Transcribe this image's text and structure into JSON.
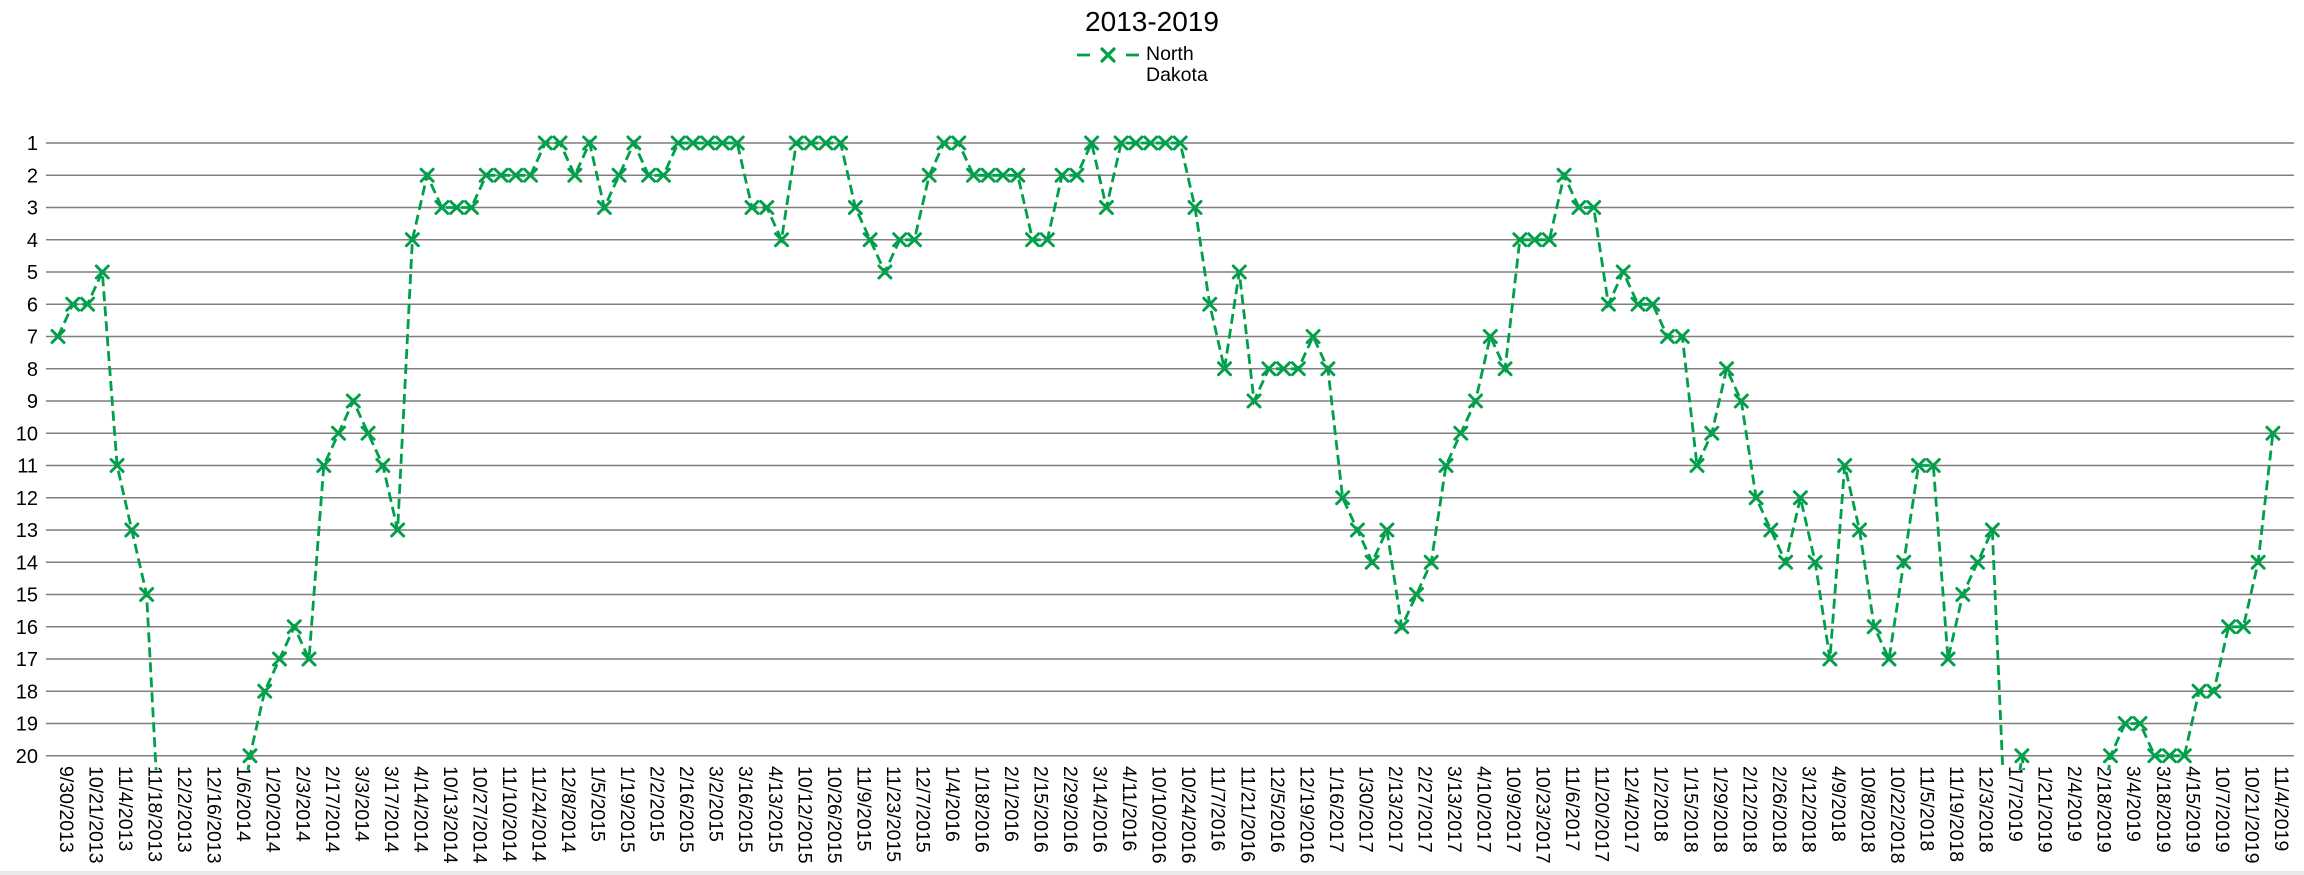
{
  "window": {
    "background": "#ffffff"
  },
  "header": {
    "title": "2013-2019"
  },
  "legend": {
    "series_label": "North Dakota"
  },
  "colors": {
    "series": "#00a04b",
    "gridline": "#7f7f7f",
    "text": "#000000"
  },
  "chart_data": {
    "type": "line",
    "title": "2013-2019",
    "legend_position": "top-center",
    "grid": "horizontal",
    "y_axis": {
      "min": 1,
      "max": 20,
      "step": 1,
      "inverted": true
    },
    "y_tick_labels": [
      "1",
      "2",
      "3",
      "4",
      "5",
      "6",
      "7",
      "8",
      "9",
      "10",
      "11",
      "12",
      "13",
      "14",
      "15",
      "16",
      "17",
      "18",
      "19",
      "20"
    ],
    "x_tick_labels": [
      "9/30/2013",
      "10/21/2013",
      "11/4/2013",
      "11/18/2013",
      "12/2/2013",
      "12/16/2013",
      "1/6/2014",
      "1/20/2014",
      "2/3/2014",
      "2/17/2014",
      "3/3/2014",
      "3/17/2014",
      "4/14/2014",
      "10/13/2014",
      "10/27/2014",
      "11/10/2014",
      "11/24/2014",
      "12/8/2014",
      "1/5/2015",
      "1/19/2015",
      "2/2/2015",
      "2/16/2015",
      "3/2/2015",
      "3/16/2015",
      "4/13/2015",
      "10/12/2015",
      "10/26/2015",
      "11/9/2015",
      "11/23/2015",
      "12/7/2015",
      "1/4/2016",
      "1/18/2016",
      "2/1/2016",
      "2/15/2016",
      "2/29/2016",
      "3/14/2016",
      "4/11/2016",
      "10/10/2016",
      "10/24/2016",
      "11/7/2016",
      "11/21/2016",
      "12/5/2016",
      "12/19/2016",
      "1/16/2017",
      "1/30/2017",
      "2/13/2017",
      "2/27/2017",
      "3/13/2017",
      "4/10/2017",
      "10/9/2017",
      "10/23/2017",
      "11/6/2017",
      "11/20/2017",
      "12/4/2017",
      "1/2/2018",
      "1/15/2018",
      "1/29/2018",
      "2/12/2018",
      "2/26/2018",
      "3/12/2018",
      "4/9/2018",
      "10/8/2018",
      "10/22/2018",
      "11/5/2018",
      "11/19/2018",
      "12/3/2018",
      "1/7/2019",
      "1/21/2019",
      "2/4/2019",
      "2/18/2019",
      "3/4/2019",
      "3/18/2019",
      "4/15/2019",
      "10/7/2019",
      "10/21/2019",
      "11/4/2019"
    ],
    "points_per_tick_label": 2,
    "series": [
      {
        "name": "North Dakota",
        "color": "#00a04b",
        "line_style": "dashed",
        "marker": "x",
        "values": [
          7,
          6,
          6,
          5,
          11,
          13,
          15,
          null,
          null,
          null,
          null,
          null,
          null,
          20,
          18,
          17,
          16,
          17,
          11,
          10,
          9,
          10,
          11,
          13,
          4,
          2,
          3,
          3,
          3,
          2,
          2,
          2,
          2,
          1,
          1,
          2,
          1,
          3,
          2,
          1,
          2,
          2,
          1,
          1,
          1,
          1,
          1,
          3,
          3,
          4,
          1,
          1,
          1,
          1,
          3,
          4,
          5,
          4,
          4,
          2,
          1,
          1,
          2,
          2,
          2,
          2,
          4,
          4,
          2,
          2,
          1,
          3,
          1,
          1,
          1,
          1,
          1,
          3,
          6,
          8,
          5,
          9,
          8,
          8,
          8,
          7,
          8,
          12,
          13,
          14,
          13,
          16,
          15,
          14,
          11,
          10,
          9,
          7,
          8,
          4,
          4,
          4,
          2,
          3,
          3,
          6,
          5,
          6,
          6,
          7,
          7,
          11,
          10,
          8,
          9,
          12,
          13,
          14,
          12,
          14,
          17,
          11,
          13,
          16,
          17,
          14,
          11,
          11,
          17,
          15,
          14,
          13,
          null,
          20,
          null,
          null,
          null,
          null,
          null,
          20,
          19,
          19,
          20,
          20,
          20,
          18,
          18,
          16,
          16,
          14,
          10
        ]
      }
    ]
  }
}
